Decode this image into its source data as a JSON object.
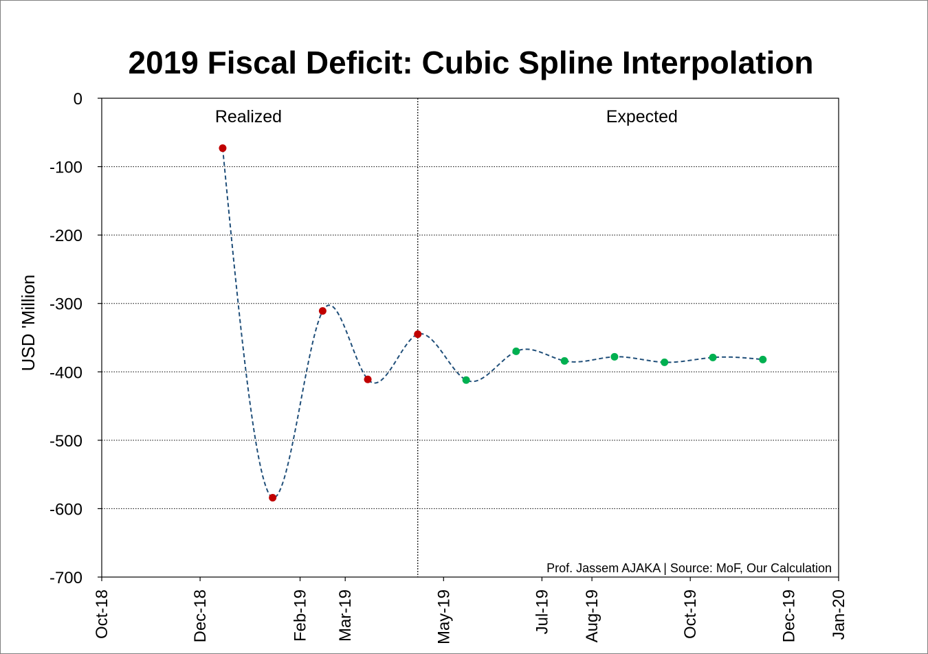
{
  "chart_data": {
    "type": "line",
    "title": "2019 Fiscal Deficit: Cubic Spline Interpolation",
    "ylabel": "USD 'Million",
    "xlabel": "",
    "ylim": [
      -700,
      0
    ],
    "yticks": [
      0,
      -100,
      -200,
      -300,
      -400,
      -500,
      -600,
      -700
    ],
    "ytick_labels": [
      "0",
      "-100",
      "-200",
      "-300",
      "-400",
      "-500",
      "-600",
      "-700"
    ],
    "xlim": [
      "2018-10-01",
      "2020-01-01"
    ],
    "xticks": [
      "2018-10-01",
      "2018-12-01",
      "2019-02-01",
      "2019-03-01",
      "2019-05-01",
      "2019-07-01",
      "2019-08-01",
      "2019-10-01",
      "2019-12-01",
      "2020-01-01"
    ],
    "xtick_labels": [
      "Oct-18",
      "Dec-18",
      "Feb-19",
      "Mar-19",
      "May-19",
      "Jul-19",
      "Aug-19",
      "Oct-19",
      "Dec-19",
      "Jan-20"
    ],
    "grid": "horizontal dotted",
    "divider_x": "2019-04-15",
    "regions": [
      {
        "label": "Realized",
        "center_x": "2018-12-31"
      },
      {
        "label": "Expected",
        "center_x": "2019-09-01"
      }
    ],
    "series": [
      {
        "name": "Realized",
        "color": "#c00000",
        "x": [
          "2018-12-15",
          "2019-01-15",
          "2019-02-15",
          "2019-03-15",
          "2019-04-15"
        ],
        "y": [
          -73,
          -584,
          -311,
          -411,
          -345
        ]
      },
      {
        "name": "Expected",
        "color": "#00b050",
        "x": [
          "2019-05-15",
          "2019-06-15",
          "2019-07-15",
          "2019-08-15",
          "2019-09-15",
          "2019-10-15",
          "2019-11-15"
        ],
        "y": [
          -412,
          -370,
          -384,
          -378,
          -386,
          -379,
          -382
        ]
      }
    ],
    "spline_color": "#1f4e79",
    "annotation": "Prof. Jassem AJAKA | Source: MoF, Our Calculation"
  }
}
